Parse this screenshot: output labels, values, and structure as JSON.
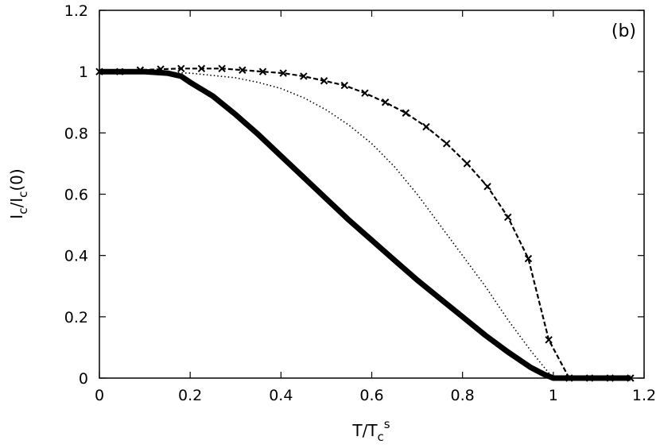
{
  "chart_data": {
    "type": "line",
    "panel_label": "(b)",
    "xlabel": {
      "main": "T/T",
      "sub": "c",
      "sup": "s"
    },
    "ylabel": {
      "p1": "I",
      "s1": "c",
      "p2": "/I",
      "s2": "c",
      "p3": "(0)"
    },
    "xlim": [
      0,
      1.2
    ],
    "ylim": [
      0,
      1.2
    ],
    "xticks": [
      0,
      0.2,
      0.4,
      0.6,
      0.8,
      1,
      1.2
    ],
    "yticks": [
      0,
      0.2,
      0.4,
      0.6,
      0.8,
      1,
      1.2
    ],
    "xtick_labels": [
      "0",
      "0.2",
      "0.4",
      "0.6",
      "0.8",
      "1",
      "1.2"
    ],
    "ytick_labels": [
      "0",
      "0.2",
      "0.4",
      "0.6",
      "0.8",
      "1",
      "1.2"
    ],
    "grid": false,
    "series": [
      {
        "style": "thick-solid",
        "color": "#000000",
        "x": [
          0,
          0.05,
          0.1,
          0.15,
          0.18,
          0.2,
          0.25,
          0.3,
          0.35,
          0.4,
          0.45,
          0.5,
          0.55,
          0.6,
          0.65,
          0.7,
          0.75,
          0.8,
          0.85,
          0.9,
          0.95,
          0.98,
          1.0,
          1.05,
          1.1,
          1.15,
          1.17
        ],
        "y": [
          1.0,
          1.0,
          1.0,
          0.995,
          0.985,
          0.965,
          0.92,
          0.86,
          0.795,
          0.725,
          0.655,
          0.585,
          0.515,
          0.45,
          0.385,
          0.32,
          0.26,
          0.2,
          0.14,
          0.085,
          0.035,
          0.012,
          0.0,
          0.0,
          0.0,
          0.0,
          0.0
        ]
      },
      {
        "style": "dotted",
        "color": "#000000",
        "x": [
          0,
          0.1,
          0.2,
          0.3,
          0.35,
          0.4,
          0.45,
          0.5,
          0.55,
          0.6,
          0.65,
          0.7,
          0.75,
          0.8,
          0.85,
          0.9,
          0.95,
          0.98,
          1.0
        ],
        "y": [
          1.0,
          1.0,
          0.995,
          0.98,
          0.965,
          0.945,
          0.915,
          0.875,
          0.825,
          0.765,
          0.69,
          0.6,
          0.5,
          0.4,
          0.3,
          0.19,
          0.09,
          0.035,
          0.0
        ]
      },
      {
        "style": "dashed-x-markers",
        "color": "#000000",
        "x": [
          0,
          0.045,
          0.09,
          0.135,
          0.18,
          0.225,
          0.27,
          0.315,
          0.36,
          0.405,
          0.45,
          0.495,
          0.54,
          0.585,
          0.63,
          0.675,
          0.72,
          0.765,
          0.81,
          0.855,
          0.9,
          0.945,
          0.99,
          1.035,
          1.08,
          1.125,
          1.17
        ],
        "y": [
          1.0,
          1.0,
          1.005,
          1.008,
          1.01,
          1.01,
          1.01,
          1.005,
          1.0,
          0.995,
          0.985,
          0.97,
          0.955,
          0.93,
          0.9,
          0.865,
          0.82,
          0.765,
          0.7,
          0.625,
          0.525,
          0.39,
          0.125,
          0.0,
          0.0,
          0.0,
          0.0
        ]
      }
    ]
  }
}
